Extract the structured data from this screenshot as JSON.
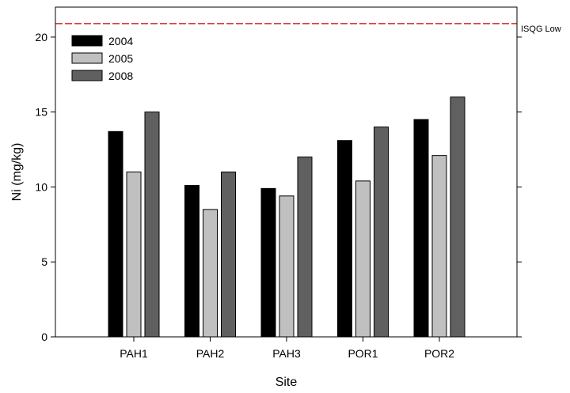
{
  "chart_data": {
    "type": "bar",
    "title": "",
    "xlabel": "Site",
    "ylabel": "Ni (mg/kg)",
    "ylim": [
      0,
      22
    ],
    "yticks": [
      0,
      5,
      10,
      15,
      20
    ],
    "categories": [
      "PAH1",
      "PAH2",
      "PAH3",
      "POR1",
      "POR2"
    ],
    "series": [
      {
        "name": "2004",
        "color": "#000000",
        "values": [
          13.7,
          10.1,
          9.9,
          13.1,
          14.5
        ]
      },
      {
        "name": "2005",
        "color": "#c0c0c0",
        "values": [
          11.0,
          8.5,
          9.4,
          10.4,
          12.1
        ]
      },
      {
        "name": "2008",
        "color": "#606060",
        "values": [
          15.0,
          11.0,
          12.0,
          14.0,
          16.0
        ]
      }
    ],
    "reference_line": {
      "label": "ISQG Low",
      "value": 20.9,
      "color": "#cc0000",
      "style": "dashed"
    },
    "legend": {
      "placement": "top-left"
    },
    "grid": false
  }
}
